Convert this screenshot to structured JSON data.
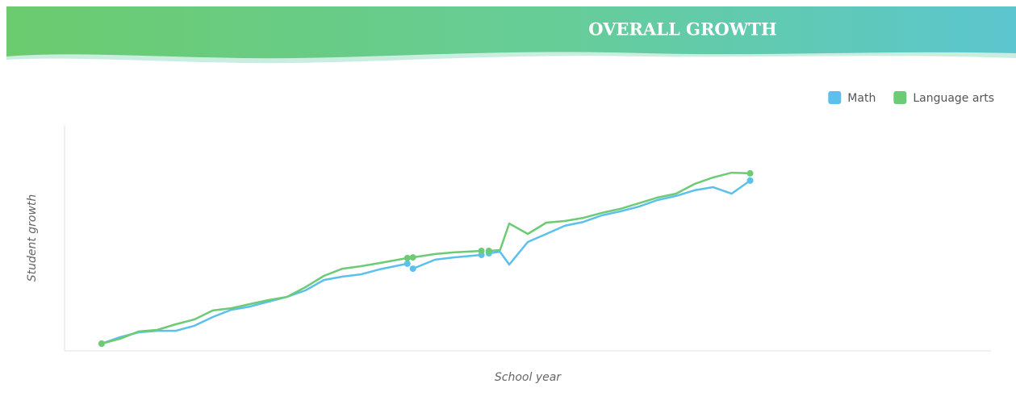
{
  "chart_data": {
    "type": "line",
    "title": "OVERALL GROWTH",
    "x_label": "School year",
    "y_label": "Student growth",
    "xlim": [
      0,
      100
    ],
    "ylim": [
      0,
      100
    ],
    "legend": "top-right",
    "x": [
      4,
      6,
      8,
      10,
      12,
      14,
      16,
      18,
      20,
      22,
      24,
      26,
      28,
      30,
      32,
      34,
      37,
      37.3,
      37.6,
      40,
      42,
      45,
      45.4,
      45.8,
      47,
      48,
      50,
      52,
      54,
      56,
      58,
      60,
      62,
      64,
      66,
      68,
      70,
      72,
      74
    ],
    "series": [
      {
        "name": "Math",
        "color": "#5bc0eb",
        "values": [
          3.2,
          6.1,
          8.2,
          8.9,
          8.9,
          11.1,
          15,
          18.2,
          19.6,
          21.8,
          23.9,
          26.8,
          31.4,
          32.9,
          33.9,
          36.1,
          38.6,
          null,
          36.4,
          40.4,
          41.4,
          42.5,
          null,
          43.2,
          43.9,
          38.2,
          48.2,
          51.8,
          55.4,
          57.1,
          60,
          61.8,
          63.9,
          66.8,
          68.6,
          71.1,
          72.5,
          69.6,
          75.4
        ]
      },
      {
        "name": "Language arts",
        "color": "#6ccb74",
        "values": [
          3.2,
          5.4,
          8.6,
          9.3,
          11.8,
          13.9,
          17.9,
          18.9,
          20.7,
          22.5,
          23.9,
          28.2,
          33.2,
          36.4,
          37.5,
          38.9,
          41.1,
          null,
          41.4,
          42.9,
          43.6,
          44.3,
          null,
          44.3,
          44.6,
          56.4,
          51.8,
          56.8,
          57.5,
          58.9,
          61.1,
          62.9,
          65.4,
          67.9,
          69.6,
          73.9,
          76.8,
          78.9,
          78.6
        ]
      }
    ]
  }
}
